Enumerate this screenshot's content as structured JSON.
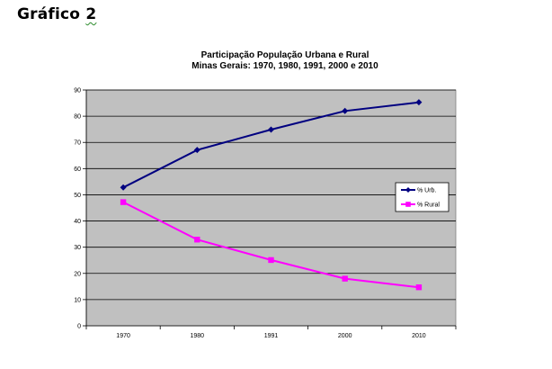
{
  "heading": {
    "word": "Gráfico",
    "number": "2"
  },
  "chart_data": {
    "type": "line",
    "title": "Participação População Urbana e Rural",
    "subtitle": "Minas Gerais: 1970, 1980, 1991, 2000 e 2010",
    "categories": [
      "1970",
      "1980",
      "1991",
      "2000",
      "2010"
    ],
    "series": [
      {
        "name": "% Urb.",
        "values": [
          52.8,
          67.1,
          74.9,
          82.0,
          85.3
        ],
        "color": "#000080",
        "marker": "diamond"
      },
      {
        "name": "% Rural",
        "values": [
          47.2,
          32.9,
          25.1,
          18.0,
          14.7
        ],
        "color": "#ff00ff",
        "marker": "square"
      }
    ],
    "ylim": [
      0,
      90
    ],
    "yticks": [
      "0",
      "10",
      "20",
      "30",
      "40",
      "50",
      "60",
      "70",
      "80",
      "90"
    ],
    "grid": true,
    "plot_background": "#c0c0c0",
    "legend_position": "right"
  }
}
